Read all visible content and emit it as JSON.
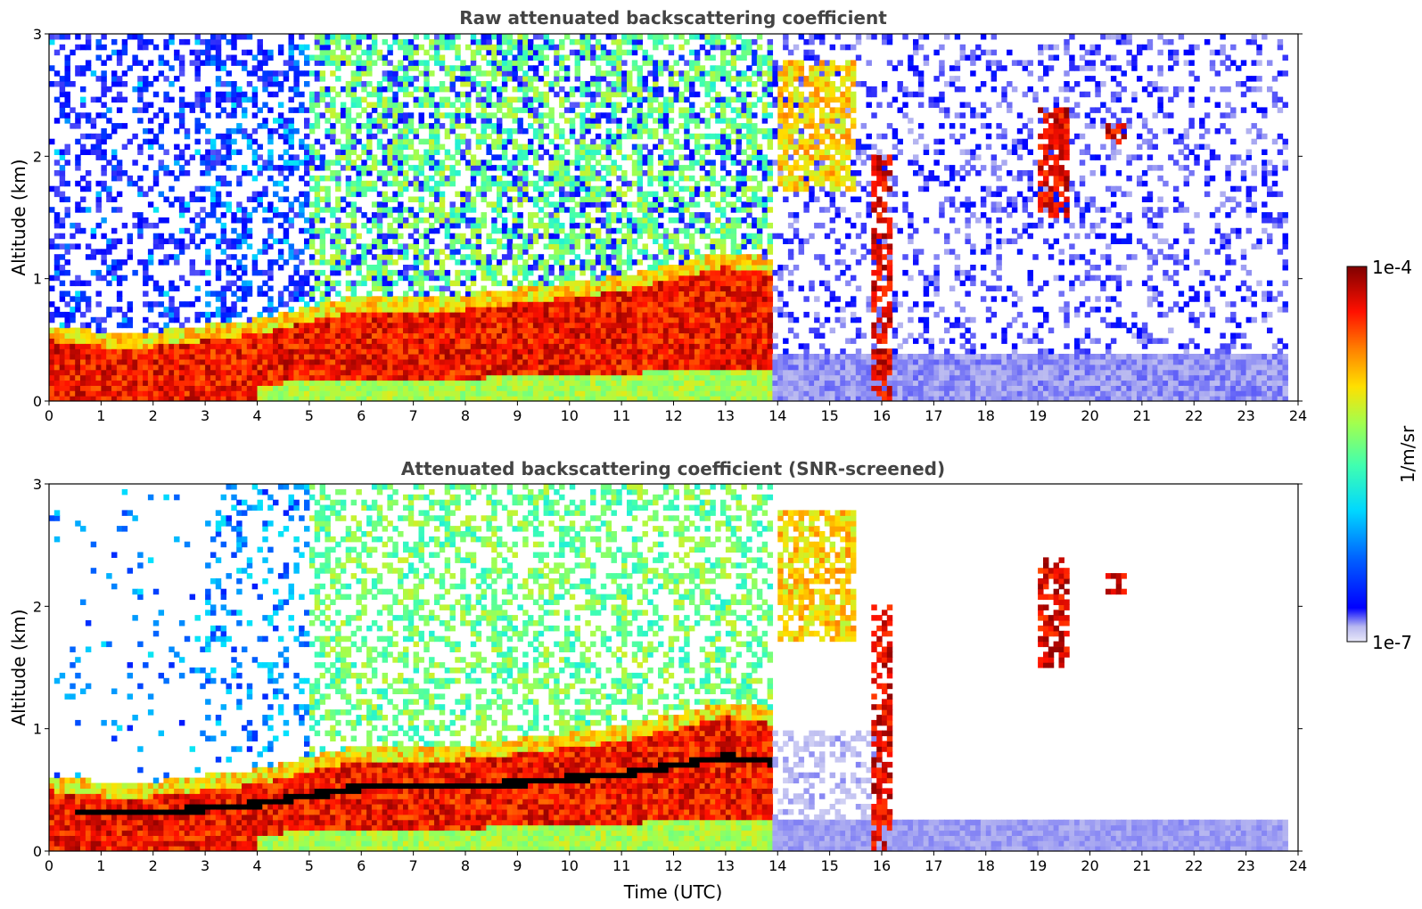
{
  "chart_data": [
    {
      "type": "heatmap",
      "title": "Raw attenuated backscattering coefficient",
      "xlabel": "",
      "ylabel": "Altitude (km)",
      "xlim": [
        0,
        24
      ],
      "ylim": [
        0,
        3
      ],
      "xticks": [
        "0",
        "1",
        "2",
        "3",
        "4",
        "5",
        "6",
        "7",
        "8",
        "9",
        "10",
        "11",
        "12",
        "13",
        "14",
        "15",
        "16",
        "17",
        "18",
        "19",
        "20",
        "21",
        "22",
        "23",
        "24"
      ],
      "yticks": [
        "0",
        "1",
        "2",
        "3"
      ],
      "boundary_layer_top_km": [
        [
          0.0,
          0.5
        ],
        [
          1.0,
          0.45
        ],
        [
          2.0,
          0.45
        ],
        [
          3.0,
          0.5
        ],
        [
          4.0,
          0.55
        ],
        [
          5.0,
          0.65
        ],
        [
          6.0,
          0.75
        ],
        [
          7.0,
          0.75
        ],
        [
          8.0,
          0.75
        ],
        [
          9.0,
          0.8
        ],
        [
          10.0,
          0.85
        ],
        [
          11.0,
          0.9
        ],
        [
          12.0,
          1.0
        ],
        [
          13.0,
          1.1
        ],
        [
          13.8,
          1.05
        ]
      ],
      "aerosol_layer_km": [
        [
          14.0,
          1.7,
          2.8
        ]
      ],
      "clouds": [
        {
          "t_start": 15.8,
          "t_end": 16.2,
          "alt_bottom_km": 0.0,
          "alt_top_km": 2.0
        },
        {
          "t_start": 19.0,
          "t_end": 19.6,
          "alt_bottom_km": 1.5,
          "alt_top_km": 2.4
        },
        {
          "t_start": 20.3,
          "t_end": 20.7,
          "alt_bottom_km": 2.1,
          "alt_top_km": 2.25
        }
      ],
      "night_layer_top_km": 0.4,
      "data_end_time": 23.8,
      "screened": false
    },
    {
      "type": "heatmap",
      "title": "Attenuated backscattering coefficient (SNR-screened)",
      "xlabel": "Time (UTC)",
      "ylabel": "Altitude (km)",
      "xlim": [
        0,
        24
      ],
      "ylim": [
        0,
        3
      ],
      "xticks": [
        "0",
        "1",
        "2",
        "3",
        "4",
        "5",
        "6",
        "7",
        "8",
        "9",
        "10",
        "11",
        "12",
        "13",
        "14",
        "15",
        "16",
        "17",
        "18",
        "19",
        "20",
        "21",
        "22",
        "23",
        "24"
      ],
      "yticks": [
        "0",
        "1",
        "2",
        "3"
      ],
      "boundary_layer_top_km": [
        [
          0.0,
          0.5
        ],
        [
          1.0,
          0.45
        ],
        [
          2.0,
          0.45
        ],
        [
          3.0,
          0.5
        ],
        [
          4.0,
          0.55
        ],
        [
          5.0,
          0.65
        ],
        [
          6.0,
          0.75
        ],
        [
          7.0,
          0.75
        ],
        [
          8.0,
          0.75
        ],
        [
          9.0,
          0.8
        ],
        [
          10.0,
          0.85
        ],
        [
          11.0,
          0.9
        ],
        [
          12.0,
          1.0
        ],
        [
          13.0,
          1.1
        ],
        [
          13.8,
          1.05
        ]
      ],
      "aerosol_layer_km": [
        [
          14.0,
          1.7,
          2.8
        ]
      ],
      "clouds": [
        {
          "t_start": 15.8,
          "t_end": 16.2,
          "alt_bottom_km": 0.0,
          "alt_top_km": 2.0
        },
        {
          "t_start": 19.0,
          "t_end": 19.6,
          "alt_bottom_km": 1.5,
          "alt_top_km": 2.4
        },
        {
          "t_start": 20.3,
          "t_end": 20.7,
          "alt_bottom_km": 2.1,
          "alt_top_km": 2.25
        }
      ],
      "night_layer_top_km": 0.25,
      "data_end_time": 23.8,
      "screened": true
    }
  ],
  "colorbar": {
    "label": "1/m/sr",
    "max_label": "1e-4",
    "min_label": "1e-7",
    "colormap": "jet",
    "colors": [
      "#e8e8f8",
      "#b8b8f0",
      "#0000ff",
      "#0080ff",
      "#00e0ff",
      "#40ffb0",
      "#a0ff50",
      "#ffe000",
      "#ff8000",
      "#ff1000",
      "#800000"
    ]
  }
}
